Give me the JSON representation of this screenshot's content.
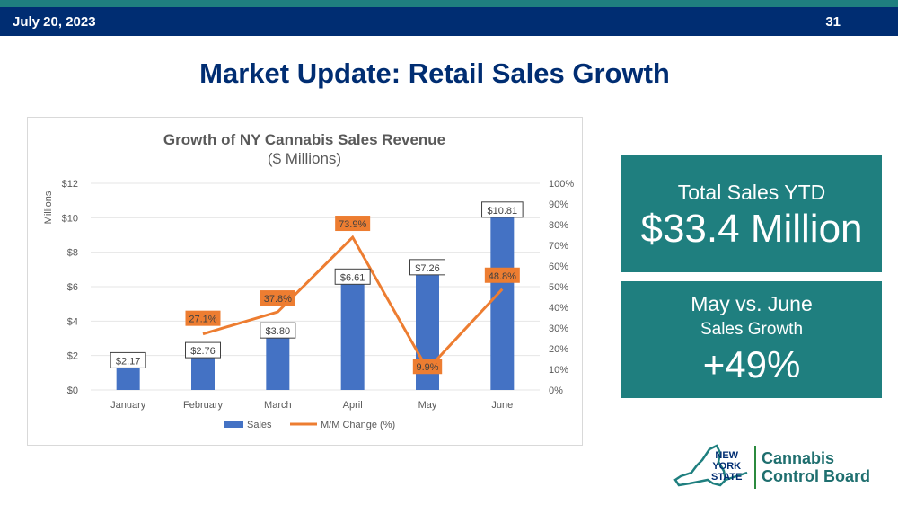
{
  "header": {
    "date": "July 20, 2023",
    "page_number": "31"
  },
  "title": "Market Update: Retail Sales Growth",
  "chart_data": {
    "type": "bar",
    "title": "Growth of NY Cannabis Sales Revenue",
    "subtitle": "($ Millions)",
    "ylabel": "Millions",
    "categories": [
      "January",
      "February",
      "March",
      "April",
      "May",
      "June"
    ],
    "series": [
      {
        "name": "Sales",
        "type": "bar",
        "axis": "left",
        "color": "#4472c4",
        "values": [
          2.17,
          2.76,
          3.8,
          6.61,
          7.26,
          10.81
        ],
        "labels": [
          "$2.17",
          "$2.76",
          "$3.80",
          "$6.61",
          "$7.26",
          "$10.81"
        ]
      },
      {
        "name": "M/M Change (%)",
        "type": "line",
        "axis": "right",
        "color": "#ed7d31",
        "values": [
          null,
          27.1,
          37.8,
          73.9,
          9.9,
          48.8
        ],
        "labels": [
          "",
          "27.1%",
          "37.8%",
          "73.9%",
          "9.9%",
          "48.8%"
        ]
      }
    ],
    "ylim": [
      0,
      12
    ],
    "ylim_right": [
      0,
      100
    ],
    "y_ticks": [
      "$0",
      "$2",
      "$4",
      "$6",
      "$8",
      "$10",
      "$12"
    ],
    "y_ticks_right": [
      "0%",
      "10%",
      "20%",
      "30%",
      "40%",
      "50%",
      "60%",
      "70%",
      "80%",
      "90%",
      "100%"
    ],
    "grid": true,
    "legend_position": "bottom"
  },
  "stats": {
    "ytd_label": "Total Sales YTD",
    "ytd_value": "$33.4 Million",
    "growth_line1": "May vs. June",
    "growth_line2": "Sales Growth",
    "growth_value": "+49%"
  },
  "logo": {
    "state_lines": [
      "NEW",
      "YORK",
      "STATE"
    ],
    "org_lines": [
      "Cannabis",
      "Control Board"
    ],
    "colors": {
      "navy": "#002d72",
      "teal": "#1f6f6f",
      "green": "#2b8a3e"
    }
  }
}
